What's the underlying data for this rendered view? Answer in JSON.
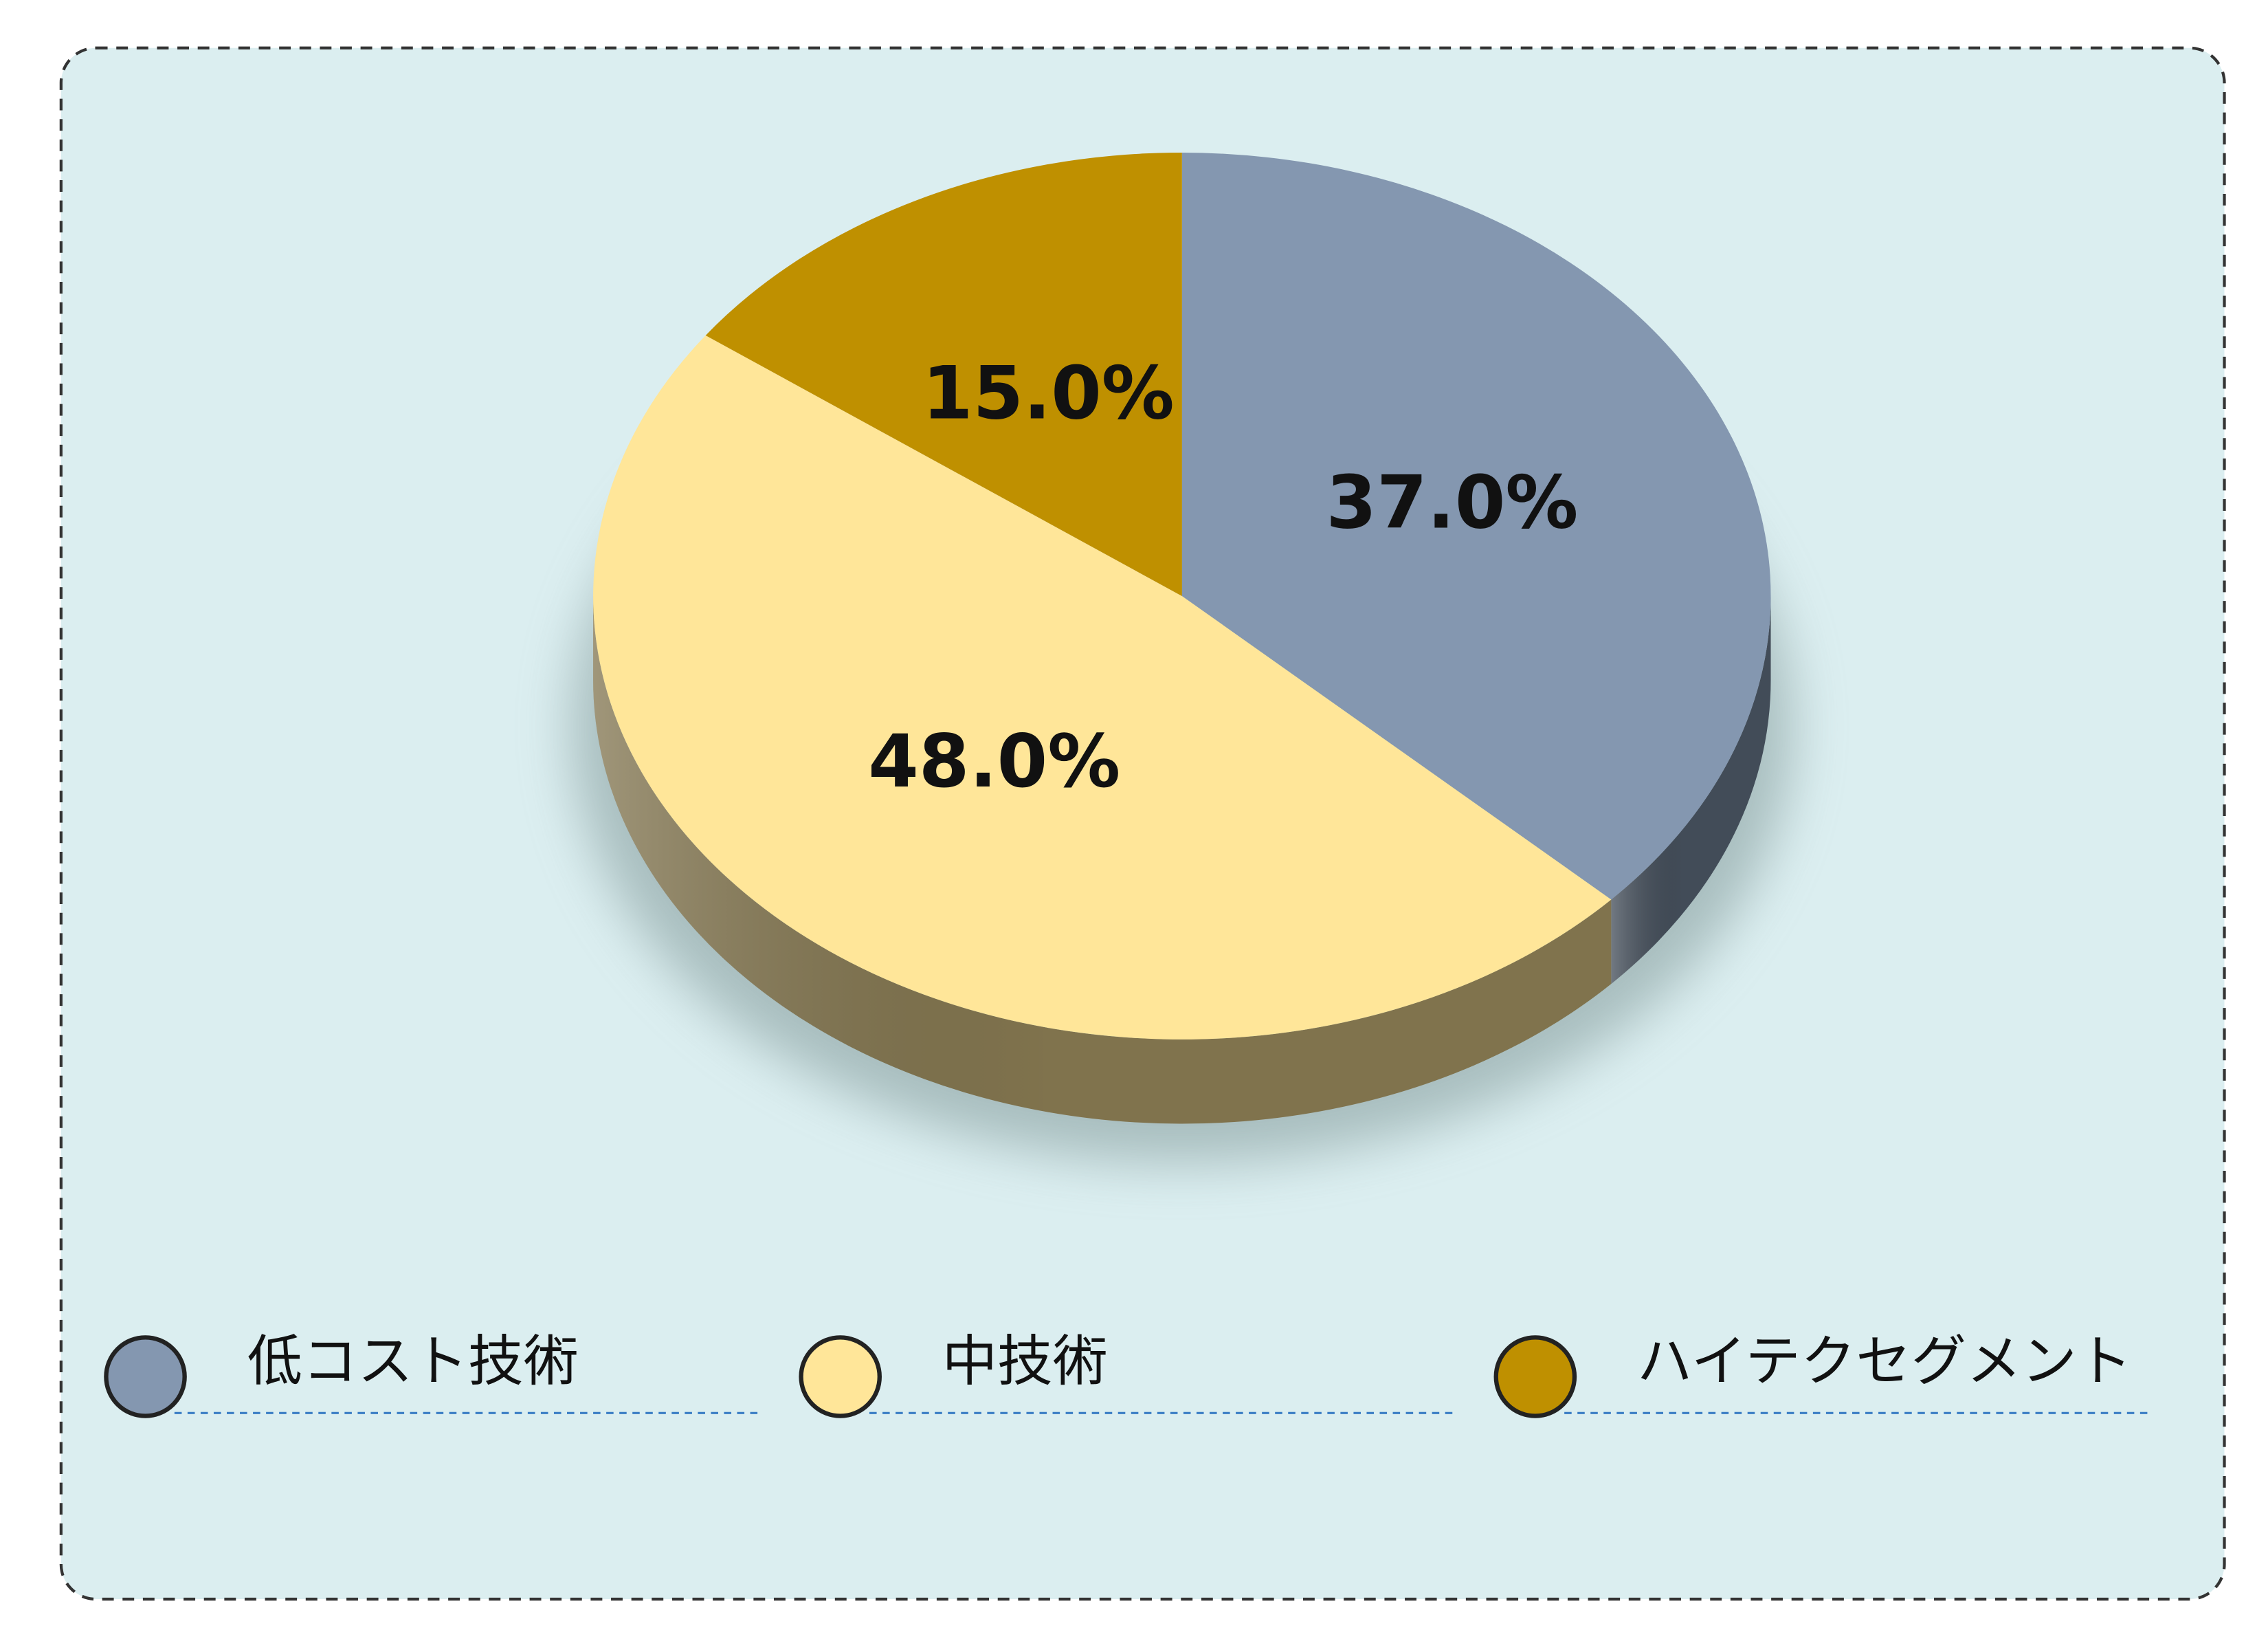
{
  "chart_data": {
    "type": "pie",
    "categories": [
      "低コスト技術",
      "中技術",
      "ハイテクセグメント"
    ],
    "values": [
      37,
      48,
      15
    ],
    "value_labels": [
      "37.0%",
      "48.0%",
      "15.0%"
    ],
    "colors": [
      "#8497b0",
      "#ffe699",
      "#bf9000"
    ],
    "legend": "bottom"
  }
}
